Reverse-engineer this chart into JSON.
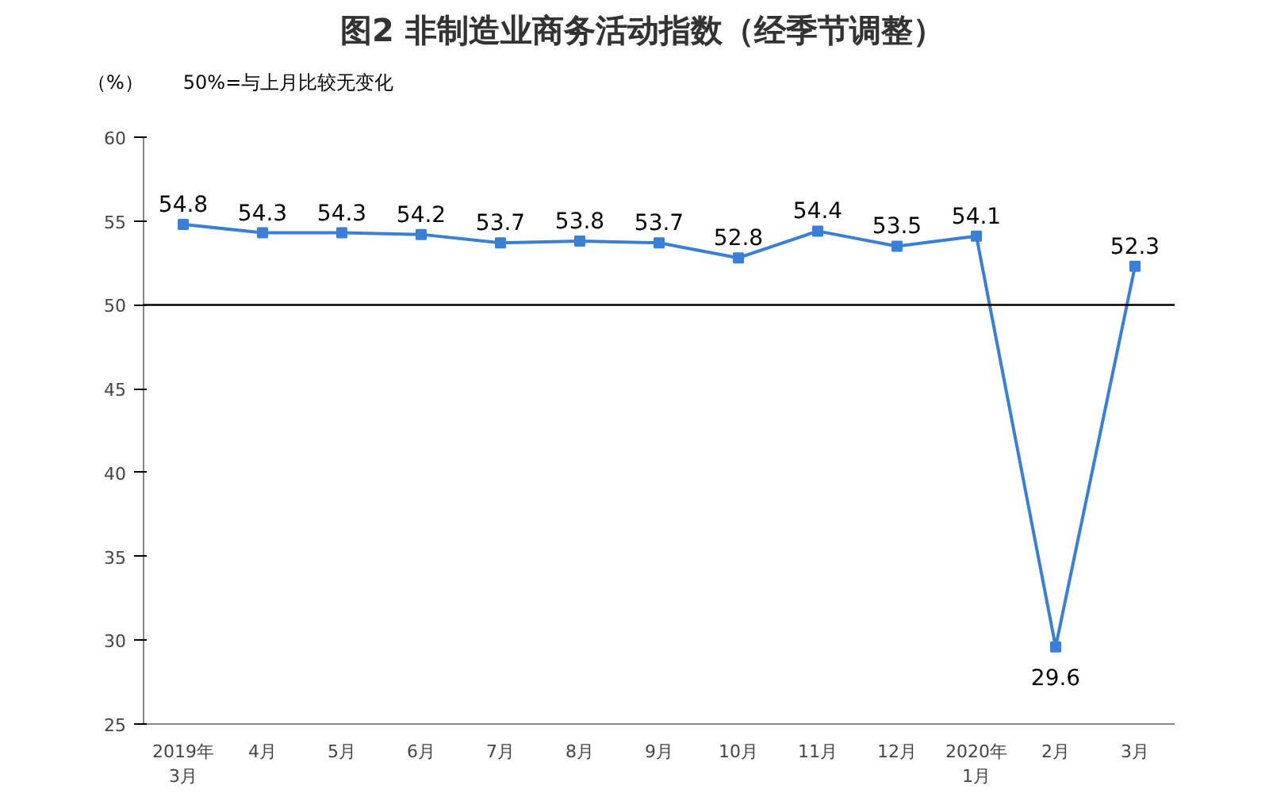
{
  "chart_data": {
    "type": "line",
    "title": "图2 非制造业商务活动指数（经季节调整）",
    "ylabel": "（%）",
    "annotations": [
      "50%=与上月比较无变化"
    ],
    "categories": [
      "2019年\n3月",
      "4月",
      "5月",
      "6月",
      "7月",
      "8月",
      "9月",
      "10月",
      "11月",
      "12月",
      "2020年\n1月",
      "2月",
      "3月"
    ],
    "series": [
      {
        "color": "#3a7fd5",
        "values": [
          54.8,
          54.3,
          54.3,
          54.2,
          53.7,
          53.8,
          53.7,
          52.8,
          54.4,
          53.5,
          54.1,
          29.6,
          52.3
        ]
      }
    ],
    "ylim": [
      25,
      60
    ],
    "yticks": [
      25,
      30,
      35,
      40,
      45,
      50,
      55,
      60
    ],
    "ref_lines": [
      {
        "axis": "y",
        "value": 50,
        "color": "#000000"
      }
    ],
    "marker": "square",
    "data_labels": true,
    "grid": false
  }
}
